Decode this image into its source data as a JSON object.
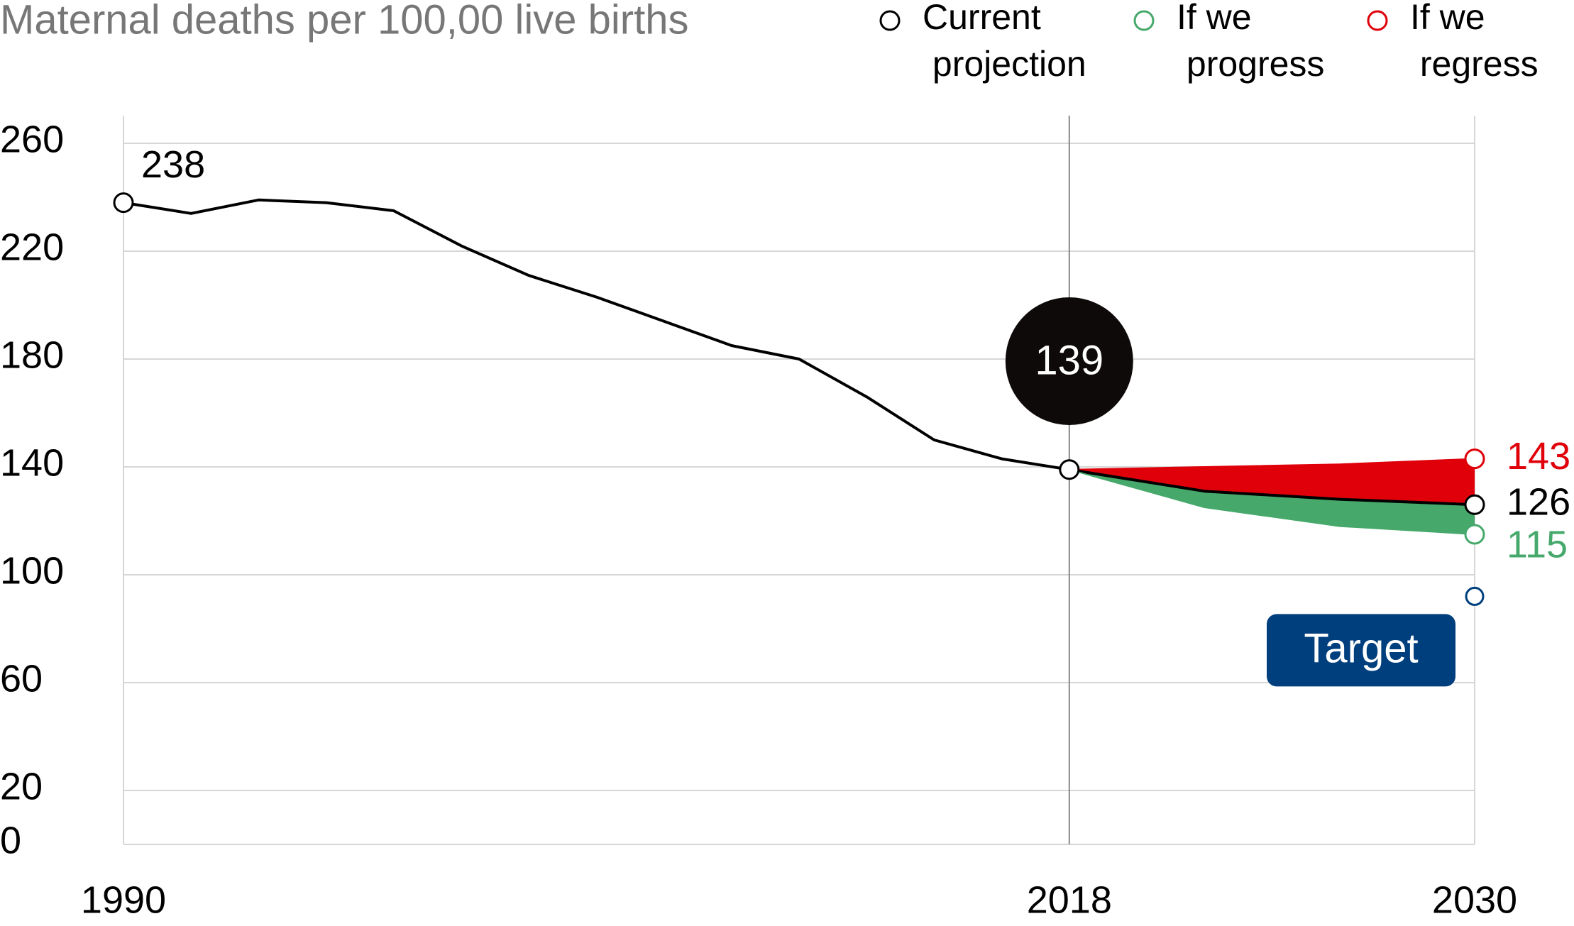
{
  "chart_data": {
    "type": "line",
    "title": "Maternal deaths per 100,00 live births",
    "xlim": [
      1990,
      2030
    ],
    "xticks": [
      1990,
      2018,
      2030
    ],
    "ylim": [
      0,
      260
    ],
    "yticks": [
      0,
      20,
      60,
      100,
      140,
      180,
      220,
      260
    ],
    "grid": true,
    "legend": "top-right",
    "series": [
      {
        "name": "Current projection",
        "color": "#000000",
        "x": [
          1990,
          1992,
          1994,
          1996,
          1998,
          2000,
          2002,
          2004,
          2006,
          2008,
          2010,
          2012,
          2014,
          2016,
          2018,
          2022,
          2026,
          2030
        ],
        "values": [
          238,
          234,
          239,
          238,
          235,
          222,
          211,
          203,
          194,
          185,
          180,
          166,
          150,
          143,
          139,
          131,
          128,
          126
        ]
      },
      {
        "name": "If we progress",
        "color": "#46a96b",
        "x": [
          2018,
          2022,
          2026,
          2030
        ],
        "values": [
          139,
          125,
          118,
          115
        ]
      },
      {
        "name": "If we regress",
        "color": "#e0000a",
        "x": [
          2018,
          2022,
          2026,
          2030
        ],
        "values": [
          139,
          140,
          141,
          143
        ]
      }
    ],
    "target": {
      "label": "Target",
      "x": 2030,
      "value": 92,
      "color": "#003f7d"
    }
  }
}
